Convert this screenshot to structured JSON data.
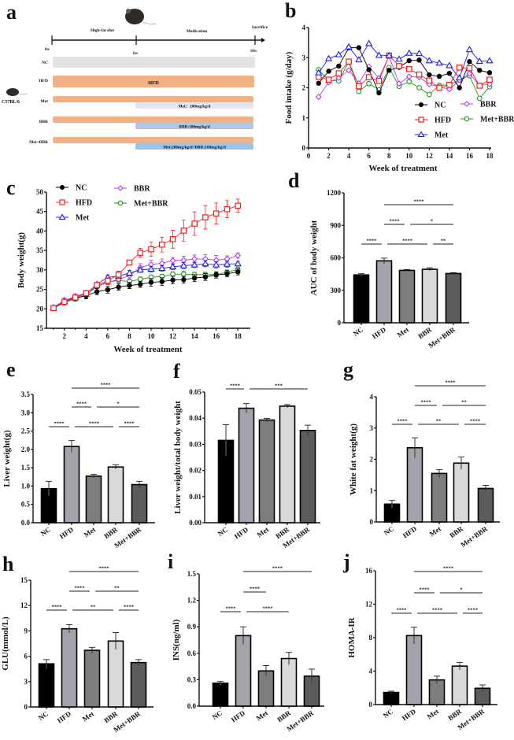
{
  "panel_labels": [
    "a",
    "b",
    "c",
    "d",
    "e",
    "f",
    "g",
    "h",
    "i",
    "j"
  ],
  "groups": [
    "NC",
    "HFD",
    "Met",
    "BBR",
    "Met+BBR"
  ],
  "colors": {
    "NC": "#000000",
    "HFD": "#ff1a1a",
    "Met": "#1a1aff",
    "BBR": "#b63cf0",
    "Met+BBR": "#1f9a1f",
    "bar_NC": "#000000",
    "bar_HFD": "#a3a3ab",
    "bar_Met": "#7d7d7d",
    "bar_BBR": "#d9d9d9",
    "bar_Met+BBR": "#5c5c5c",
    "timeline_nc": "#e3e3e3",
    "timeline_hfd": "#f2b185",
    "med_met": "#dde6f3",
    "med_bbr": "#b4c6e6",
    "med_combo": "#9cc2e5"
  },
  "scheme": {
    "phase1": "High-fat diet",
    "phase2": "Medication",
    "end": "Sacrifice",
    "t0": "0w",
    "t1": "6w",
    "t2": "18w",
    "strain": "C57BL/6",
    "rows": [
      {
        "label": "NC",
        "bar_text": ""
      },
      {
        "label": "HFD",
        "bar_text": "HFD"
      },
      {
        "label": "Met",
        "bar_text": "Met：200mg/kg/d"
      },
      {
        "label": "BBR",
        "bar_text": "BBR:100mg/kg/d"
      },
      {
        "label": "Met+BBR",
        "bar_text": "Met:200mg/kg/d+BBR:100mg/kg/d"
      }
    ]
  },
  "chart_data": [
    {
      "id": "b",
      "type": "line",
      "ylabel": "Food intake (g/day)",
      "xlabel": "Week of treatment",
      "xlim": [
        0,
        18
      ],
      "ylim": [
        0,
        4
      ],
      "xticks": [
        "0",
        "2",
        "4",
        "6",
        "8",
        "10",
        "12",
        "14",
        "16",
        "18"
      ],
      "yticks": [
        "0",
        "1",
        "2",
        "3",
        "4"
      ],
      "legend": "bottom-right",
      "x": [
        1,
        2,
        3,
        4,
        5,
        6,
        7,
        8,
        9,
        10,
        11,
        12,
        13,
        14,
        15,
        16,
        17,
        18
      ],
      "series": [
        {
          "name": "NC",
          "values": [
            2.15,
            2.55,
            2.72,
            3.33,
            3.33,
            2.6,
            1.83,
            2.58,
            2.68,
            2.9,
            2.92,
            2.43,
            2.38,
            2.48,
            2.0,
            2.87,
            2.58,
            2.5
          ]
        },
        {
          "name": "HFD",
          "values": [
            2.36,
            2.27,
            2.48,
            2.87,
            2.05,
            2.35,
            2.23,
            3.07,
            2.72,
            2.62,
            2.44,
            2.24,
            2.0,
            2.1,
            2.67,
            2.65,
            2.07,
            2.27
          ]
        },
        {
          "name": "Met",
          "values": [
            2.5,
            2.97,
            3.1,
            3.36,
            2.93,
            3.47,
            3.08,
            3.07,
            2.95,
            3.15,
            3.14,
            2.9,
            2.82,
            2.74,
            2.33,
            3.27,
            2.88,
            2.9
          ]
        },
        {
          "name": "BBR",
          "values": [
            1.7,
            2.18,
            2.33,
            2.58,
            2.15,
            2.7,
            2.32,
            3.05,
            2.14,
            2.37,
            2.35,
            2.12,
            2.03,
            1.95,
            2.25,
            2.47,
            2.08,
            2.12
          ]
        },
        {
          "name": "Met+BBR",
          "values": [
            2.6,
            2.24,
            2.23,
            2.86,
            1.88,
            2.14,
            1.93,
            2.67,
            2.05,
            2.2,
            2.0,
            1.78,
            2.08,
            2.1,
            2.25,
            2.4,
            1.65,
            2.03
          ]
        }
      ]
    },
    {
      "id": "c",
      "type": "line",
      "ylabel": "Body weight(g)",
      "xlabel": "Week of treatment",
      "xlim": [
        0,
        18
      ],
      "ylim": [
        15,
        50
      ],
      "xticks": [
        "2",
        "4",
        "6",
        "8",
        "10",
        "12",
        "14",
        "16",
        "18"
      ],
      "yticks": [
        "15",
        "20",
        "25",
        "30",
        "35",
        "40",
        "45",
        "50"
      ],
      "legend": "top-left",
      "x": [
        1,
        2,
        3,
        4,
        5,
        6,
        7,
        8,
        9,
        10,
        11,
        12,
        13,
        14,
        15,
        16,
        17,
        18
      ],
      "series": [
        {
          "name": "NC",
          "values": [
            20.2,
            21.8,
            22.8,
            23.4,
            24.4,
            24.9,
            25.6,
            26.0,
            26.3,
            26.8,
            27.0,
            27.4,
            27.5,
            27.9,
            28.2,
            28.7,
            29.0,
            29.5
          ],
          "err": [
            0.3,
            0.6,
            0.7,
            0.8,
            0.8,
            0.9,
            0.8,
            0.8,
            0.8,
            1.0,
            1.0,
            1.0,
            0.9,
            0.9,
            0.9,
            0.8,
            0.8,
            0.8
          ]
        },
        {
          "name": "HFD",
          "values": [
            20.2,
            21.8,
            22.9,
            24.0,
            26.1,
            27.2,
            28.8,
            31.9,
            34.4,
            35.3,
            36.5,
            37.9,
            40.1,
            41.9,
            43.5,
            44.5,
            45.6,
            46.5
          ],
          "err": [
            0.3,
            0.5,
            0.6,
            0.6,
            0.6,
            0.8,
            0.9,
            0.6,
            1.1,
            1.8,
            1.9,
            2.3,
            2.7,
            3.0,
            3.0,
            2.7,
            2.2,
            1.7
          ]
        },
        {
          "name": "Met",
          "values": [
            20.3,
            21.9,
            23.0,
            23.8,
            26.3,
            28.1,
            28.4,
            29.2,
            30.0,
            30.2,
            30.4,
            30.8,
            31.1,
            31.3,
            31.6,
            31.3,
            31.5,
            31.6
          ],
          "err": [
            0.3,
            0.5,
            0.6,
            0.6,
            0.5,
            0.6,
            0.5,
            0.7,
            0.6,
            0.7,
            0.7,
            0.7,
            0.8,
            0.7,
            0.8,
            0.8,
            0.8,
            0.6
          ]
        },
        {
          "name": "BBR",
          "values": [
            20.3,
            22.2,
            23.1,
            24.1,
            25.7,
            26.8,
            27.6,
            28.5,
            30.6,
            31.4,
            31.7,
            32.4,
            32.5,
            32.8,
            32.8,
            32.5,
            32.8,
            33.7
          ],
          "err": [
            0.3,
            0.6,
            0.8,
            0.6,
            0.5,
            0.6,
            0.6,
            0.8,
            1.0,
            1.1,
            1.1,
            0.8,
            1.0,
            1.0,
            1.1,
            1.2,
            0.8,
            0.7
          ]
        },
        {
          "name": "Met+BBR",
          "values": [
            20.2,
            21.5,
            22.6,
            23.4,
            25.8,
            26.9,
            27.3,
            27.0,
            27.6,
            28.1,
            28.3,
            28.9,
            28.9,
            28.8,
            28.8,
            28.8,
            29.4,
            30.1
          ],
          "err": [
            0.3,
            0.5,
            0.6,
            0.6,
            0.5,
            0.6,
            0.5,
            0.6,
            0.6,
            0.6,
            0.6,
            0.6,
            0.7,
            0.6,
            0.6,
            0.6,
            0.6,
            0.6
          ]
        }
      ]
    },
    {
      "id": "d",
      "type": "bar",
      "ylabel": "AUC of body weight",
      "ylim": [
        0,
        1200
      ],
      "yticks": [
        "0",
        "300",
        "600",
        "900",
        "1200"
      ],
      "values": [
        442,
        572,
        484,
        494,
        455
      ],
      "err": [
        12,
        25,
        8,
        14,
        8
      ],
      "sig": [
        {
          "a": 1,
          "b": 4,
          "level": 3,
          "label": "****"
        },
        {
          "a": 1,
          "b": 2,
          "level": 2,
          "label": "****"
        },
        {
          "a": 2,
          "b": 4,
          "level": 2,
          "label": "*"
        },
        {
          "a": 0,
          "b": 1,
          "level": 1,
          "label": "****"
        },
        {
          "a": 1,
          "b": 3,
          "level": 1,
          "label": "****"
        },
        {
          "a": 3,
          "b": 4,
          "level": 1,
          "label": "**"
        }
      ]
    },
    {
      "id": "e",
      "type": "bar",
      "ylabel": "Liver weight(g)",
      "ylim": [
        0,
        3.5
      ],
      "yticks": [
        "0.0",
        "0.5",
        "1.0",
        "1.5",
        "2.0",
        "2.5",
        "3.0",
        "3.5"
      ],
      "values": [
        0.93,
        2.08,
        1.27,
        1.52,
        1.04
      ],
      "err": [
        0.2,
        0.16,
        0.05,
        0.06,
        0.09
      ],
      "sig": [
        {
          "a": 1,
          "b": 4,
          "level": 3,
          "label": "****"
        },
        {
          "a": 1,
          "b": 2,
          "level": 2,
          "label": "****"
        },
        {
          "a": 2,
          "b": 4,
          "level": 2,
          "label": "*"
        },
        {
          "a": 0,
          "b": 1,
          "level": 1,
          "label": "****"
        },
        {
          "a": 1,
          "b": 3,
          "level": 1,
          "label": "****"
        },
        {
          "a": 3,
          "b": 4,
          "level": 1,
          "label": "****"
        }
      ]
    },
    {
      "id": "f",
      "type": "bar",
      "ylabel": "Liver weight/total body weight",
      "ylim": [
        0,
        0.05
      ],
      "yticks": [
        "0.00",
        "0.01",
        "0.02",
        "0.03",
        "0.04",
        "0.05"
      ],
      "values": [
        0.0315,
        0.0438,
        0.0393,
        0.0446,
        0.0353
      ],
      "err": [
        0.006,
        0.0018,
        0.0006,
        0.0006,
        0.002
      ],
      "sig": [
        {
          "a": 0,
          "b": 1,
          "level": 1,
          "label": "****"
        },
        {
          "a": 1,
          "b": 4,
          "level": 1,
          "label": "***"
        }
      ]
    },
    {
      "id": "g",
      "type": "bar",
      "ylabel": "White fat weight(g)",
      "ylim": [
        0,
        4
      ],
      "yticks": [
        "0",
        "1",
        "2",
        "3",
        "4"
      ],
      "values": [
        0.57,
        2.37,
        1.55,
        1.88,
        1.07
      ],
      "err": [
        0.12,
        0.32,
        0.12,
        0.2,
        0.1
      ],
      "sig": [
        {
          "a": 1,
          "b": 4,
          "level": 3,
          "label": "****"
        },
        {
          "a": 1,
          "b": 2,
          "level": 2,
          "label": "****"
        },
        {
          "a": 2,
          "b": 4,
          "level": 2,
          "label": "**"
        },
        {
          "a": 0,
          "b": 1,
          "level": 1,
          "label": "****"
        },
        {
          "a": 1,
          "b": 3,
          "level": 1,
          "label": "**"
        },
        {
          "a": 3,
          "b": 4,
          "level": 1,
          "label": "****"
        }
      ]
    },
    {
      "id": "h",
      "type": "bar",
      "ylabel": "GLU(mmol/L)",
      "ylim": [
        0,
        15
      ],
      "yticks": [
        "0",
        "3",
        "6",
        "9",
        "12",
        "15"
      ],
      "values": [
        5.1,
        9.25,
        6.7,
        7.8,
        5.25
      ],
      "err": [
        0.5,
        0.5,
        0.35,
        1.0,
        0.35
      ],
      "sig": [
        {
          "a": 1,
          "b": 4,
          "level": 3,
          "label": "****"
        },
        {
          "a": 1,
          "b": 2,
          "level": 2,
          "label": "****"
        },
        {
          "a": 2,
          "b": 4,
          "level": 2,
          "label": "**"
        },
        {
          "a": 0,
          "b": 1,
          "level": 1,
          "label": "****"
        },
        {
          "a": 1,
          "b": 3,
          "level": 1,
          "label": "**"
        },
        {
          "a": 3,
          "b": 4,
          "level": 1,
          "label": "****"
        }
      ]
    },
    {
      "id": "i",
      "type": "bar",
      "ylabel": "INS(ng/ml)",
      "ylim": [
        0,
        1.5
      ],
      "yticks": [
        "0.0",
        "0.3",
        "0.6",
        "0.9",
        "1.2",
        "1.5"
      ],
      "values": [
        0.26,
        0.8,
        0.4,
        0.54,
        0.34
      ],
      "err": [
        0.02,
        0.1,
        0.06,
        0.07,
        0.08
      ],
      "sig": [
        {
          "a": 1,
          "b": 4,
          "level": 3,
          "label": "****"
        },
        {
          "a": 1,
          "b": 2,
          "level": 2,
          "label": "****"
        },
        {
          "a": 0,
          "b": 1,
          "level": 1,
          "label": "****"
        },
        {
          "a": 1,
          "b": 3,
          "level": 1,
          "label": "****"
        }
      ]
    },
    {
      "id": "j",
      "type": "bar",
      "ylabel": "HOMA-IR",
      "ylim": [
        0,
        16
      ],
      "yticks": [
        "0",
        "4",
        "8",
        "12",
        "16"
      ],
      "values": [
        1.45,
        8.25,
        2.95,
        4.6,
        1.95
      ],
      "err": [
        0.15,
        1.0,
        0.45,
        0.45,
        0.4
      ],
      "sig": [
        {
          "a": 1,
          "b": 4,
          "level": 3,
          "label": "****"
        },
        {
          "a": 1,
          "b": 2,
          "level": 2,
          "label": "****"
        },
        {
          "a": 2,
          "b": 4,
          "level": 2,
          "label": "*"
        },
        {
          "a": 0,
          "b": 1,
          "level": 1,
          "label": "****"
        },
        {
          "a": 1,
          "b": 3,
          "level": 1,
          "label": "****"
        },
        {
          "a": 3,
          "b": 4,
          "level": 1,
          "label": "****"
        }
      ]
    }
  ]
}
